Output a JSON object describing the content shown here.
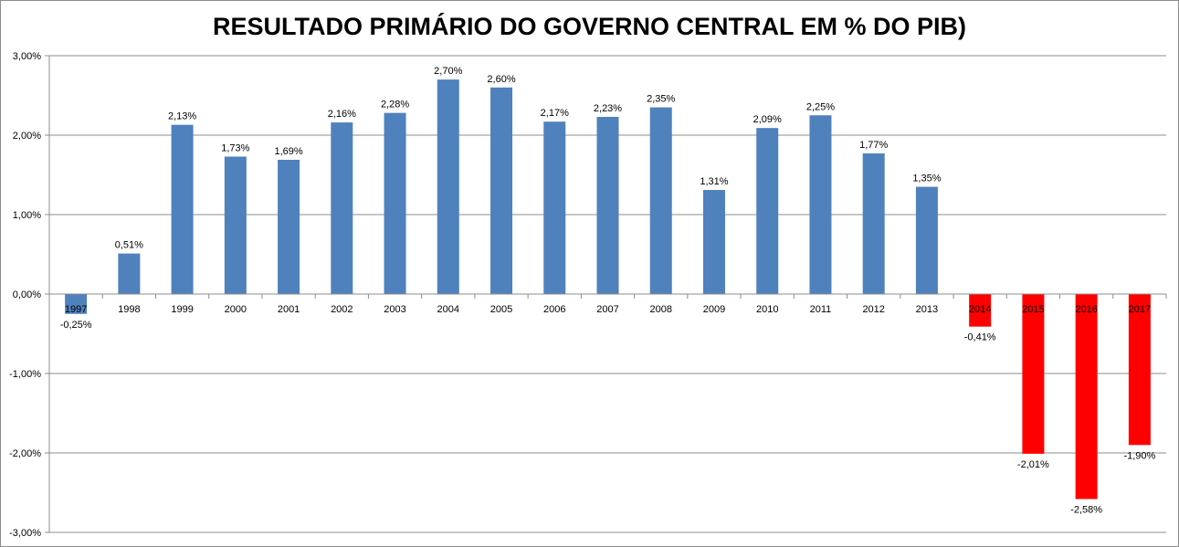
{
  "chart_data": {
    "type": "bar",
    "title": "RESULTADO PRIMÁRIO DO GOVERNO CENTRAL EM % DO PIB)",
    "xlabel": "",
    "ylabel": "",
    "ylim": [
      -3,
      3
    ],
    "yticks": [
      3,
      2,
      1,
      0,
      -1,
      -2,
      -3
    ],
    "ytick_labels": [
      "3,00%",
      "2,00%",
      "1,00%",
      "0,00%",
      "-1,00%",
      "-2,00%",
      "-3,00%"
    ],
    "grid": true,
    "categories": [
      "1997",
      "1998",
      "1999",
      "2000",
      "2001",
      "2002",
      "2003",
      "2004",
      "2005",
      "2006",
      "2007",
      "2008",
      "2009",
      "2010",
      "2011",
      "2012",
      "2013",
      "2014",
      "2015",
      "2016",
      "2017"
    ],
    "values": [
      -0.25,
      0.51,
      2.13,
      1.73,
      1.69,
      2.16,
      2.28,
      2.7,
      2.6,
      2.17,
      2.23,
      2.35,
      1.31,
      2.09,
      2.25,
      1.77,
      1.35,
      -0.41,
      -2.01,
      -2.58,
      -1.9
    ],
    "data_labels": [
      "-0,25%",
      "0,51%",
      "2,13%",
      "1,73%",
      "1,69%",
      "2,16%",
      "2,28%",
      "2,70%",
      "2,60%",
      "2,17%",
      "2,23%",
      "2,35%",
      "1,31%",
      "2,09%",
      "2,25%",
      "1,77%",
      "1,35%",
      "-0,41%",
      "-2,01%",
      "-2,58%",
      "-1,90%"
    ],
    "bar_colors": [
      "#4f81bd",
      "#4f81bd",
      "#4f81bd",
      "#4f81bd",
      "#4f81bd",
      "#4f81bd",
      "#4f81bd",
      "#4f81bd",
      "#4f81bd",
      "#4f81bd",
      "#4f81bd",
      "#4f81bd",
      "#4f81bd",
      "#4f81bd",
      "#4f81bd",
      "#4f81bd",
      "#4f81bd",
      "#ff0000",
      "#ff0000",
      "#ff0000",
      "#ff0000"
    ]
  }
}
